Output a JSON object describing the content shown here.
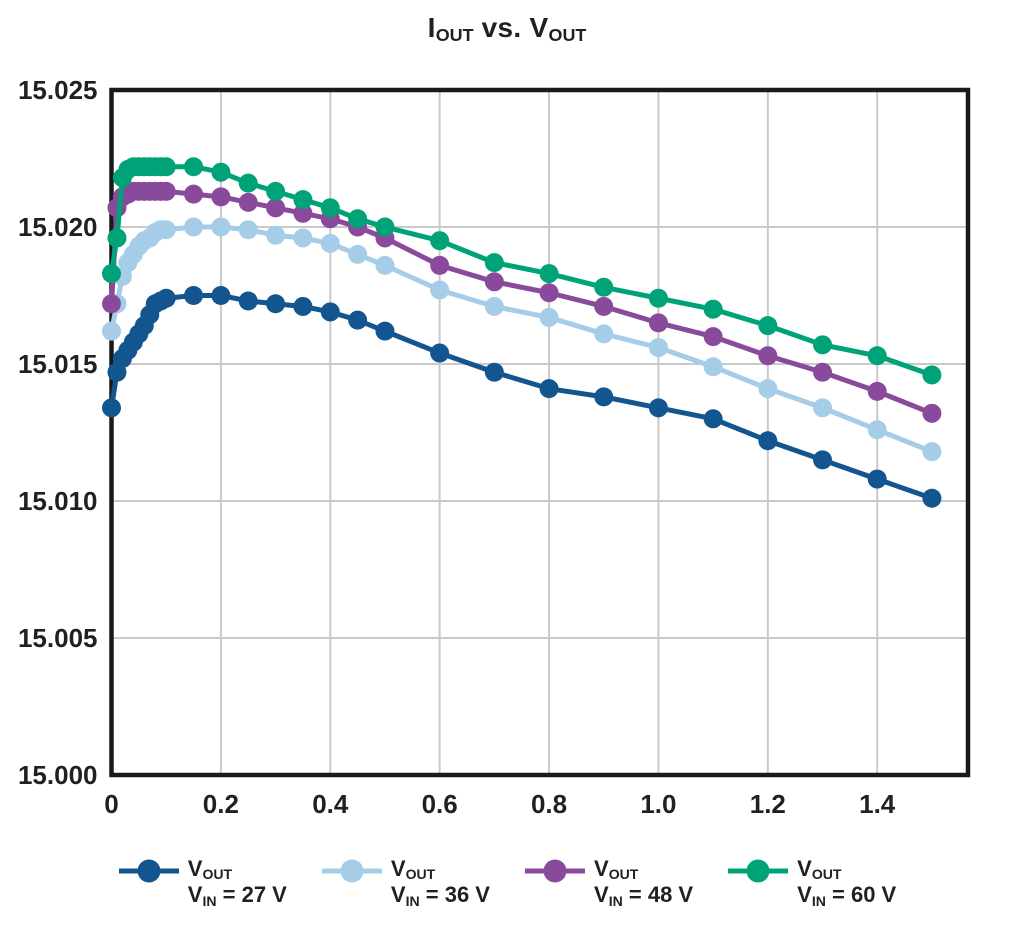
{
  "title": {
    "p1": "I",
    "p1_sub": "OUT",
    "p2": " vs. ",
    "p3": "V",
    "p3_sub": "OUT"
  },
  "style": {
    "background": "#FFFFFF",
    "text_color": "#231F20",
    "grid_color": "#C9C9C9",
    "axis_color": "#1A1A1A"
  },
  "chart_data": {
    "type": "line",
    "title": "IOUT vs. VOUT",
    "xlabel": "",
    "ylabel": "",
    "xlim": [
      0,
      1.566
    ],
    "ylim": [
      15.0,
      15.025
    ],
    "grid": true,
    "legend_position": "bottom",
    "x_ticks": [
      {
        "value": 0,
        "label": "0"
      },
      {
        "value": 0.2,
        "label": "0.2"
      },
      {
        "value": 0.4,
        "label": "0.4"
      },
      {
        "value": 0.6,
        "label": "0.6"
      },
      {
        "value": 0.8,
        "label": "0.8"
      },
      {
        "value": 1.0,
        "label": "1.0"
      },
      {
        "value": 1.2,
        "label": "1.2"
      },
      {
        "value": 1.4,
        "label": "1.4"
      }
    ],
    "y_ticks": [
      {
        "value": 15.0,
        "label": "15.000"
      },
      {
        "value": 15.005,
        "label": "15.005"
      },
      {
        "value": 15.01,
        "label": "15.010"
      },
      {
        "value": 15.015,
        "label": "15.015"
      },
      {
        "value": 15.02,
        "label": "15.020"
      },
      {
        "value": 15.025,
        "label": "15.025"
      }
    ],
    "x": [
      0,
      0.01,
      0.02,
      0.03,
      0.04,
      0.05,
      0.06,
      0.07,
      0.08,
      0.09,
      0.1,
      0.15,
      0.2,
      0.25,
      0.3,
      0.35,
      0.4,
      0.45,
      0.5,
      0.6,
      0.7,
      0.8,
      0.9,
      1.0,
      1.1,
      1.2,
      1.3,
      1.4,
      1.5
    ],
    "series": [
      {
        "name": "VOUT, VIN = 27 V",
        "color": "#13568F",
        "values": [
          15.0134,
          15.0147,
          15.0152,
          15.0155,
          15.0158,
          15.0161,
          15.0164,
          15.0168,
          15.0172,
          15.0173,
          15.0174,
          15.0175,
          15.0175,
          15.0173,
          15.0172,
          15.0171,
          15.0169,
          15.0166,
          15.0162,
          15.0154,
          15.0147,
          15.0141,
          15.0138,
          15.0134,
          15.013,
          15.0122,
          15.0115,
          15.0108,
          15.0101
        ]
      },
      {
        "name": "VOUT, VIN = 36 V",
        "color": "#A5CDE8",
        "values": [
          15.0162,
          15.0172,
          15.0182,
          15.0187,
          15.019,
          15.0193,
          15.0195,
          15.0196,
          15.0198,
          15.0199,
          15.0199,
          15.02,
          15.02,
          15.0199,
          15.0197,
          15.0196,
          15.0194,
          15.019,
          15.0186,
          15.0177,
          15.0171,
          15.0167,
          15.0161,
          15.0156,
          15.0149,
          15.0141,
          15.0134,
          15.0126,
          15.0118
        ]
      },
      {
        "name": "VOUT, VIN = 48 V",
        "color": "#8A4A9C",
        "values": [
          15.0172,
          15.0207,
          15.0211,
          15.0212,
          15.0213,
          15.0213,
          15.0213,
          15.0213,
          15.0213,
          15.0213,
          15.0213,
          15.0212,
          15.0211,
          15.0209,
          15.0207,
          15.0205,
          15.0203,
          15.02,
          15.0196,
          15.0186,
          15.018,
          15.0176,
          15.0171,
          15.0165,
          15.016,
          15.0153,
          15.0147,
          15.014,
          15.0132
        ]
      },
      {
        "name": "VOUT, VIN = 60 V",
        "color": "#00A377",
        "values": [
          15.0183,
          15.0196,
          15.0218,
          15.0221,
          15.0222,
          15.0222,
          15.0222,
          15.0222,
          15.0222,
          15.0222,
          15.0222,
          15.0222,
          15.022,
          15.0216,
          15.0213,
          15.021,
          15.0207,
          15.0203,
          15.02,
          15.0195,
          15.0187,
          15.0183,
          15.0178,
          15.0174,
          15.017,
          15.0164,
          15.0157,
          15.0153,
          15.0146
        ]
      }
    ]
  },
  "legend": {
    "items": [
      {
        "id": "vin-27v",
        "color": "#13568F",
        "line1_main": "V",
        "line1_sub": "OUT",
        "line2_main": "V",
        "line2_sub": "IN",
        "line2_rest": " = 27 V"
      },
      {
        "id": "vin-36v",
        "color": "#A5CDE8",
        "line1_main": "V",
        "line1_sub": "OUT",
        "line2_main": "V",
        "line2_sub": "IN",
        "line2_rest": " = 36 V"
      },
      {
        "id": "vin-48v",
        "color": "#8A4A9C",
        "line1_main": "V",
        "line1_sub": "OUT",
        "line2_main": "V",
        "line2_sub": "IN",
        "line2_rest": " = 48 V"
      },
      {
        "id": "vin-60v",
        "color": "#00A377",
        "line1_main": "V",
        "line1_sub": "OUT",
        "line2_main": "V",
        "line2_sub": "IN",
        "line2_rest": " = 60 V"
      }
    ]
  }
}
